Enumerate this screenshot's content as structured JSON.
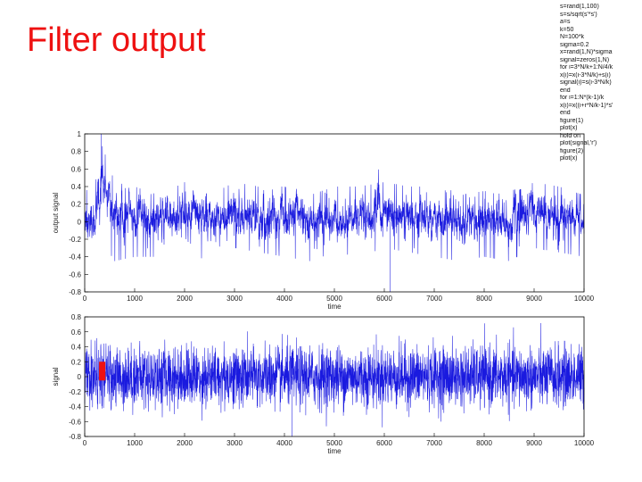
{
  "slide": {
    "title": "Filter output",
    "code_lines": [
      "s=rand(1,100)",
      "s=s/sqrt(s'*s')",
      "a=s",
      "k=50",
      "N=100*k",
      "sigma=0.2",
      "x=rand(1,N)*sigma",
      "signal=zeros(1,N)",
      "for i=3*N/k+1:N/4/k",
      "  x(i)=x(i-3*N/k)+s(i)",
      "  signal(i)=s(i-3*N/k)",
      "end",
      "for i=1:N*(k-1)/k",
      "  x(i)=x((i+r*N/k-1)*s'",
      "end",
      "figure(1)",
      "plot(x)",
      "hold on",
      "plot(signal,'r')",
      "figure(2)",
      "plot(x)"
    ]
  },
  "colors": {
    "series": "#1a1adf",
    "signal": "#ee1111",
    "title": "#ee1111",
    "axes": "#000000"
  },
  "chart_data": [
    {
      "type": "line",
      "xlabel": "time",
      "ylabel": "output signal",
      "xlim": [
        0,
        10000
      ],
      "ylim": [
        -0.8,
        1
      ],
      "x_ticks": [
        0,
        1000,
        2000,
        3000,
        4000,
        5000,
        6000,
        7000,
        8000,
        9000,
        10000
      ],
      "y_ticks": [
        -0.8,
        -0.6,
        -0.4,
        -0.2,
        0,
        0.2,
        0.4,
        0.6,
        0.8,
        1
      ],
      "n_points": 10000,
      "series": [
        {
          "color": "#1a1adf",
          "envelope_x": [
            0,
            200,
            330,
            600,
            1000,
            1500,
            2000,
            2500,
            3000,
            3500,
            4000,
            4500,
            5000,
            5500,
            6000,
            6500,
            7000,
            7500,
            8000,
            8500,
            9000,
            9500,
            10000
          ],
          "envelope_mean": [
            0.05,
            0.0,
            0.45,
            0.05,
            0.05,
            0.0,
            0.1,
            0.0,
            0.1,
            0.05,
            0.05,
            0.0,
            0.05,
            0.05,
            0.1,
            0.05,
            0.05,
            0.0,
            0.05,
            0.0,
            0.1,
            0.05,
            0.0
          ],
          "envelope_max": [
            0.35,
            0.4,
            0.9,
            0.45,
            0.4,
            0.3,
            0.45,
            0.3,
            0.45,
            0.4,
            0.4,
            0.3,
            0.4,
            0.4,
            0.45,
            0.4,
            0.4,
            0.3,
            0.35,
            0.3,
            0.45,
            0.4,
            0.3
          ],
          "envelope_min": [
            -0.3,
            -0.35,
            -0.2,
            -0.45,
            -0.4,
            -0.4,
            -0.35,
            -0.45,
            -0.3,
            -0.35,
            -0.4,
            -0.45,
            -0.35,
            -0.4,
            -0.3,
            -0.35,
            -0.4,
            -0.45,
            -0.4,
            -0.45,
            -0.3,
            -0.35,
            -0.4
          ],
          "global_max": 1.0,
          "global_min": -0.8
        }
      ]
    },
    {
      "type": "line",
      "xlabel": "time",
      "ylabel": "signal",
      "xlim": [
        0,
        10000
      ],
      "ylim": [
        -0.8,
        0.8
      ],
      "x_ticks": [
        0,
        1000,
        2000,
        3000,
        4000,
        5000,
        6000,
        7000,
        8000,
        9000,
        10000
      ],
      "y_ticks": [
        -0.8,
        -0.6,
        -0.4,
        -0.2,
        0,
        0.2,
        0.4,
        0.6,
        0.8
      ],
      "n_points": 10000,
      "series": [
        {
          "color": "#1a1adf",
          "noise_std": 0.2,
          "global_max": 0.8,
          "global_min": -0.8
        },
        {
          "color": "#ee1111",
          "x_range": [
            300,
            400
          ],
          "y_range": [
            -0.05,
            0.2
          ]
        }
      ]
    }
  ]
}
